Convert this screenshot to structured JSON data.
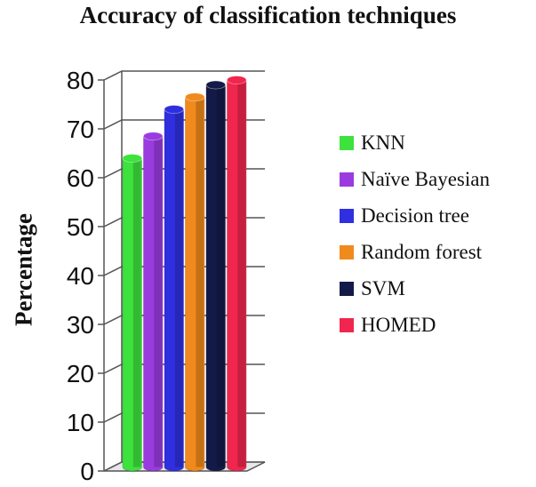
{
  "chart_data": {
    "type": "bar",
    "title": "Accuracy of classification techniques",
    "ylabel": "Percentage",
    "xlabel": "",
    "ylim": [
      0,
      80
    ],
    "yticks": [
      "0",
      "10",
      "20",
      "30",
      "40",
      "50",
      "60",
      "70",
      "80"
    ],
    "grid": true,
    "legend_position": "right",
    "series": [
      {
        "name": "KNN",
        "value": 63,
        "color": "#3de23d"
      },
      {
        "name": "Naïve Bayesian",
        "value": 67.5,
        "color": "#9a3be0"
      },
      {
        "name": "Decision tree",
        "value": 73,
        "color": "#2f2fe0"
      },
      {
        "name": "Random forest",
        "value": 75.5,
        "color": "#f08a1c"
      },
      {
        "name": "SVM",
        "value": 78,
        "color": "#141a48"
      },
      {
        "name": "HOMED",
        "value": 79,
        "color": "#f0264e"
      }
    ]
  }
}
